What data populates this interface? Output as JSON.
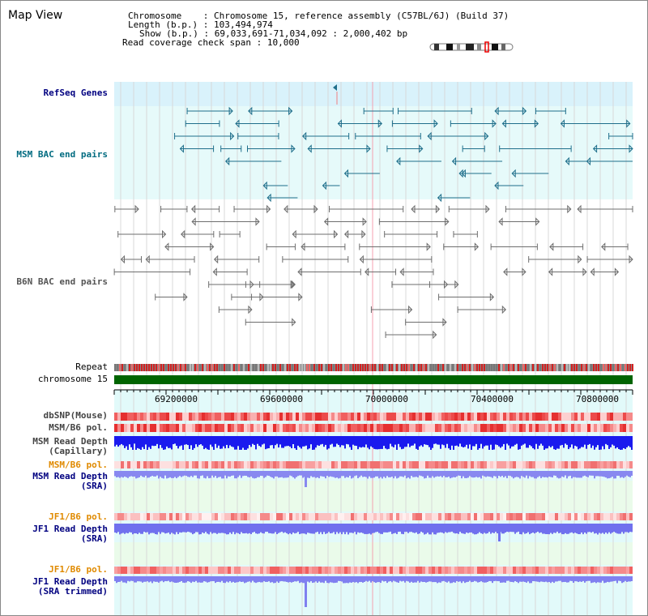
{
  "title": "Map View",
  "info": {
    "chromosome_label": "Chromosome",
    "chromosome_value": "Chromosome 15, reference assembly (C57BL/6J) (Build 37)",
    "length_label": "Length (b.p.)",
    "length_value": "103,494,974",
    "show_label": "Show (b.p.)",
    "show_value": "69,033,691-71,034,092 : 2,000,402 bp",
    "coverage_label": "Read coverage check span",
    "coverage_value": "10,000"
  },
  "tracks": {
    "refseq": "RefSeq Genes",
    "msm_bac": "MSM BAC end pairs",
    "b6n_bac": "B6N BAC end pairs",
    "repeat": "Repeat",
    "chromosome": "chromosome 15",
    "dbsnp": "dbSNP(Mouse)",
    "msm_b6_pol": "MSM/B6 pol.",
    "msm_depth_cap_1": "MSM Read Depth",
    "msm_depth_cap_2": "(Capillary)",
    "msm_b6_pol_2": "MSM/B6 pol.",
    "msm_depth_sra_1": "MSM Read Depth",
    "msm_depth_sra_2": "(SRA)",
    "jf1_pol_1": "JF1/B6 pol.",
    "jf1_depth_1": "JF1 Read Depth",
    "jf1_depth_1b": "(SRA)",
    "jf1_pol_2": "JF1/B6 pol.",
    "jf1_depth_2": "JF1 Read Depth",
    "jf1_depth_2b": "(SRA trimmed)"
  },
  "axis": {
    "ticks": [
      "69200000",
      "69600000",
      "70000000",
      "70400000",
      "70800000"
    ]
  },
  "colors": {
    "refseq_bg": "#d9f2fb",
    "msm_bg": "#e6fafa",
    "msm_color": "#1f6f8b",
    "b6n_color": "#6e6e6e",
    "chrom_green": "#006400",
    "snp_red": "#e53030",
    "depth_blue": "#1a1aee",
    "depth_light": "#8080f0",
    "orange_label": "#e08a00",
    "navy_label": "#000080",
    "teal_label": "#006b80"
  }
}
